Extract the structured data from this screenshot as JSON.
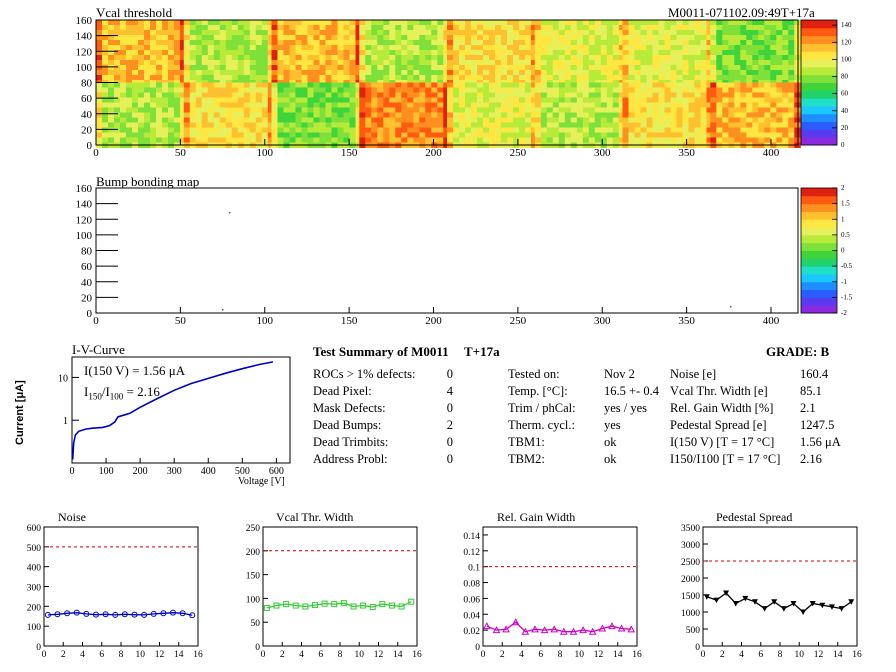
{
  "colors": {
    "palette": [
      "#8a2be2",
      "#5a3cf0",
      "#2a5cff",
      "#1f8fff",
      "#18c8ff",
      "#20e0c8",
      "#22d26a",
      "#3ed43a",
      "#7fe03a",
      "#b8ea3a",
      "#e6f05a",
      "#ffe640",
      "#ffc030",
      "#ff9020",
      "#ff5a10",
      "#e02010"
    ],
    "noise_line": "#0000cc",
    "vcal_line": "#33cc33",
    "gain_line": "#cc00cc",
    "pedestal_line": "#000000",
    "threshold_line": "#cc0000",
    "iv_line": "#0000cc"
  },
  "top_map": {
    "title": "Vcal threshold",
    "run_label": "M0011-071102.09:49T+17a",
    "x_ticks": [
      "0",
      "50",
      "100",
      "150",
      "200",
      "250",
      "300",
      "350",
      "400"
    ],
    "y_ticks": [
      "0",
      "20",
      "40",
      "60",
      "80",
      "100",
      "120",
      "140",
      "160"
    ],
    "z_ticks": [
      "0",
      "20",
      "40",
      "60",
      "80",
      "100",
      "120",
      "140"
    ]
  },
  "bump_map": {
    "title": "Bump bonding map",
    "x_ticks": [
      "0",
      "50",
      "100",
      "150",
      "200",
      "250",
      "300",
      "350",
      "400"
    ],
    "y_ticks": [
      "0",
      "20",
      "40",
      "60",
      "80",
      "100",
      "120",
      "140",
      "160"
    ],
    "z_ticks": [
      "-2",
      "-1.5",
      "-1",
      "-0.5",
      "0",
      "0.5",
      "1",
      "1.5",
      "2"
    ]
  },
  "iv_curve": {
    "title": "I-V-Curve",
    "annotation_1": "I(150 V) = 1.56 μA",
    "annotation_2a": "I",
    "annotation_2b": "150",
    "annotation_2c": "/I",
    "annotation_2d": "100",
    "annotation_2e": " =  2.16",
    "ylabel": "Current [μA]",
    "xlabel": "Voltage [V]",
    "x_ticks": [
      "0",
      "100",
      "200",
      "300",
      "400",
      "500",
      "600"
    ],
    "y_ticks": [
      "1",
      "10"
    ]
  },
  "summary": {
    "title": "Test Summary of M0011",
    "temp_tag": "T+17a",
    "grade": "GRADE:  B",
    "left_rows": [
      {
        "label": "ROCs > 1% defects:",
        "value": "0"
      },
      {
        "label": "Dead Pixel:",
        "value": "4"
      },
      {
        "label": "Mask Defects:",
        "value": "0"
      },
      {
        "label": "Dead Bumps:",
        "value": "2"
      },
      {
        "label": "Dead Trimbits:",
        "value": "0"
      },
      {
        "label": "Address Probl:",
        "value": "0"
      }
    ],
    "mid_rows": [
      {
        "label": "Tested on:",
        "value": "Nov 2"
      },
      {
        "label": "Temp. [°C]:",
        "value": "16.5 +- 0.4"
      },
      {
        "label": "Trim / phCal:",
        "value": "yes / yes"
      },
      {
        "label": "Therm. cycl.:",
        "value": "yes"
      },
      {
        "label": "TBM1:",
        "value": "ok"
      },
      {
        "label": "TBM2:",
        "value": "ok"
      }
    ],
    "right_rows": [
      {
        "label": "Noise [e]",
        "value": "160.4"
      },
      {
        "label": "Vcal Thr. Width [e]",
        "value": "85.1"
      },
      {
        "label": "Rel. Gain Width [%]",
        "value": "2.1"
      },
      {
        "label": "Pedestal Spread [e]",
        "value": "1247.5"
      },
      {
        "label": "I(150 V) [T = 17 °C]",
        "value": "1.56 μA"
      },
      {
        "label": "I150/I100  [T = 17 °C]",
        "value": "2.16"
      }
    ]
  },
  "chart_data": [
    {
      "type": "line",
      "title": "Noise",
      "x": [
        0,
        1,
        2,
        3,
        4,
        5,
        6,
        7,
        8,
        9,
        10,
        11,
        12,
        13,
        14,
        15
      ],
      "values": [
        157,
        160,
        165,
        168,
        162,
        158,
        160,
        157,
        160,
        158,
        157,
        162,
        165,
        168,
        165,
        155
      ],
      "threshold": 500,
      "ylim": [
        0,
        600
      ],
      "y_ticks": [
        "0",
        "100",
        "200",
        "300",
        "400",
        "500",
        "600"
      ],
      "x_ticks": [
        "0",
        "2",
        "4",
        "6",
        "8",
        "10",
        "12",
        "14",
        "16"
      ],
      "marker": "circle"
    },
    {
      "type": "line",
      "title": "Vcal Thr. Width",
      "x": [
        0,
        1,
        2,
        3,
        4,
        5,
        6,
        7,
        8,
        9,
        10,
        11,
        12,
        13,
        14,
        15
      ],
      "values": [
        80,
        85,
        88,
        85,
        83,
        86,
        89,
        88,
        90,
        83,
        85,
        82,
        88,
        85,
        83,
        93
      ],
      "threshold": 200,
      "ylim": [
        0,
        250
      ],
      "y_ticks": [
        "0",
        "50",
        "100",
        "150",
        "200",
        "250"
      ],
      "x_ticks": [
        "0",
        "2",
        "4",
        "6",
        "8",
        "10",
        "12",
        "14",
        "16"
      ],
      "marker": "square"
    },
    {
      "type": "line",
      "title": "Rel. Gain Width",
      "x": [
        0,
        1,
        2,
        3,
        4,
        5,
        6,
        7,
        8,
        9,
        10,
        11,
        12,
        13,
        14,
        15
      ],
      "values": [
        0.025,
        0.02,
        0.021,
        0.03,
        0.018,
        0.021,
        0.02,
        0.021,
        0.018,
        0.018,
        0.02,
        0.018,
        0.022,
        0.025,
        0.022,
        0.021
      ],
      "threshold": 0.1,
      "ylim": [
        0,
        0.15
      ],
      "y_ticks": [
        "0",
        "0.02",
        "0.04",
        "0.06",
        "0.08",
        "0.1",
        "0.12",
        "0.14"
      ],
      "x_ticks": [
        "0",
        "2",
        "4",
        "6",
        "8",
        "10",
        "12",
        "14",
        "16"
      ],
      "marker": "triangle"
    },
    {
      "type": "line",
      "title": "Pedestal Spread",
      "x": [
        0,
        1,
        2,
        3,
        4,
        5,
        6,
        7,
        8,
        9,
        10,
        11,
        12,
        13,
        14,
        15
      ],
      "values": [
        1450,
        1350,
        1560,
        1250,
        1400,
        1300,
        1100,
        1300,
        1100,
        1250,
        1000,
        1250,
        1200,
        1150,
        1100,
        1300
      ],
      "threshold": 2500,
      "ylim": [
        0,
        3500
      ],
      "y_ticks": [
        "0",
        "500",
        "1000",
        "1500",
        "2000",
        "2500",
        "3000",
        "3500"
      ],
      "x_ticks": [
        "0",
        "2",
        "4",
        "6",
        "8",
        "10",
        "12",
        "14",
        "16"
      ],
      "marker": "triangle-down"
    }
  ]
}
